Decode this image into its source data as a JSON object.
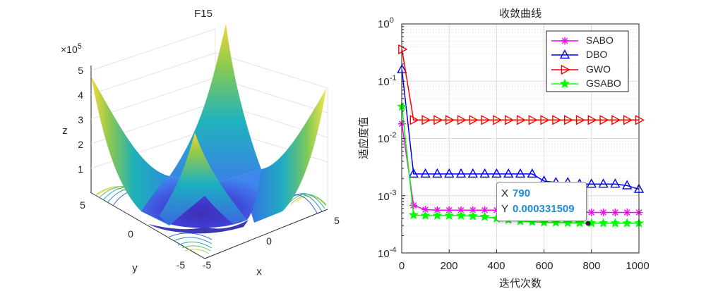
{
  "left_chart": {
    "title": "F15",
    "exponent": "×10",
    "exponent_power": "5",
    "z_label": "z",
    "x_label": "x",
    "y_label": "y",
    "z_ticks": [
      "1",
      "2",
      "3",
      "4",
      "5"
    ],
    "x_ticks": [
      "-5",
      "0",
      "5"
    ],
    "y_ticks": [
      "-5",
      "0",
      "5"
    ]
  },
  "chart_data": [
    {
      "type": "surface",
      "title": "F15",
      "xlabel": "x",
      "ylabel": "y",
      "zlabel": "z",
      "xlim": [
        -5,
        5
      ],
      "ylim": [
        -5,
        5
      ],
      "zlim": [
        0,
        500000
      ],
      "z_exponent": 5,
      "colormap": "parula",
      "contours_on_floor": true
    },
    {
      "type": "line",
      "title": "收敛曲线",
      "xlabel": "迭代次数",
      "ylabel": "适应度值",
      "yscale": "log",
      "xlim": [
        0,
        1000
      ],
      "ylim": [
        0.0001,
        1
      ],
      "x_ticks": [
        0,
        200,
        400,
        600,
        800,
        1000
      ],
      "y_tick_exponents": [
        0,
        -1,
        -2,
        -3,
        -4
      ],
      "legend_position": "top-right",
      "series": [
        {
          "name": "SABO",
          "color": "#ff00ff",
          "marker": "star",
          "x": [
            1,
            50,
            100,
            150,
            200,
            250,
            300,
            350,
            400,
            450,
            500,
            550,
            600,
            650,
            700,
            750,
            800,
            850,
            900,
            950,
            1000
          ],
          "y": [
            0.018,
            0.00068,
            0.00057,
            0.00056,
            0.00056,
            0.00056,
            0.00056,
            0.00056,
            0.00056,
            0.00056,
            0.00056,
            0.00056,
            0.00055,
            0.00054,
            0.00053,
            0.00052,
            0.00051,
            0.00051,
            0.00051,
            0.00051,
            0.00051
          ]
        },
        {
          "name": "DBO",
          "color": "#0000ff",
          "marker": "triangle-up",
          "x": [
            1,
            50,
            100,
            150,
            200,
            250,
            300,
            350,
            400,
            450,
            500,
            550,
            600,
            650,
            700,
            750,
            800,
            850,
            900,
            950,
            1000
          ],
          "y": [
            0.16,
            0.0024,
            0.0024,
            0.0024,
            0.0024,
            0.0024,
            0.0024,
            0.0024,
            0.0024,
            0.0024,
            0.0024,
            0.0024,
            0.0018,
            0.0017,
            0.0017,
            0.0016,
            0.0016,
            0.0016,
            0.0016,
            0.0015,
            0.0013
          ]
        },
        {
          "name": "GWO",
          "color": "#ff0000",
          "marker": "triangle-right",
          "x": [
            1,
            50,
            100,
            150,
            200,
            250,
            300,
            350,
            400,
            450,
            500,
            550,
            600,
            650,
            700,
            750,
            800,
            850,
            900,
            950,
            1000
          ],
          "y": [
            0.36,
            0.021,
            0.021,
            0.021,
            0.021,
            0.021,
            0.021,
            0.021,
            0.021,
            0.021,
            0.021,
            0.021,
            0.021,
            0.021,
            0.021,
            0.021,
            0.021,
            0.021,
            0.021,
            0.021,
            0.021
          ]
        },
        {
          "name": "GSABO",
          "color": "#00ff00",
          "marker": "pentagram",
          "x": [
            1,
            50,
            100,
            150,
            200,
            250,
            300,
            350,
            400,
            450,
            500,
            550,
            600,
            650,
            700,
            750,
            800,
            850,
            900,
            950,
            1000
          ],
          "y": [
            0.036,
            0.00046,
            0.00045,
            0.00045,
            0.00045,
            0.00045,
            0.00044,
            0.00043,
            0.0004,
            0.00038,
            0.00036,
            0.00035,
            0.00034,
            0.00034,
            0.000335,
            0.000333,
            0.000332,
            0.000332,
            0.000331,
            0.000331,
            0.000331
          ]
        }
      ],
      "datatip": {
        "x": 790,
        "y": 0.000331509,
        "x_label": "X",
        "y_label": "Y",
        "x_text": "790",
        "y_text": "0.000331509"
      }
    }
  ],
  "right_chart": {
    "title": "收敛曲线",
    "xlabel": "迭代次数",
    "ylabel": "适应度值",
    "x_ticks": [
      "0",
      "200",
      "400",
      "600",
      "800",
      "1000"
    ],
    "y_tick_base": "10",
    "y_tick_powers": [
      "0",
      "-1",
      "-2",
      "-3",
      "-4"
    ]
  },
  "datatip": {
    "x_key": "X",
    "x_value": "790",
    "y_key": "Y",
    "y_value": "0.000331509"
  }
}
